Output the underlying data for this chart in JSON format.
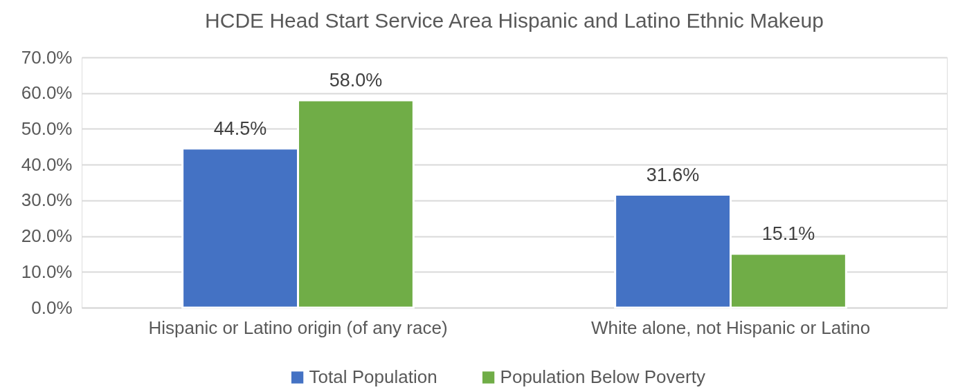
{
  "chart_data": {
    "type": "bar",
    "title": "HCDE Head Start Service Area Hispanic and Latino Ethnic Makeup",
    "categories": [
      "Hispanic or Latino origin (of any race)",
      "White alone, not Hispanic or Latino"
    ],
    "series": [
      {
        "name": "Total Population",
        "color": "#4472c4",
        "values": [
          44.5,
          31.6
        ],
        "value_labels": [
          "44.5%",
          "31.6%"
        ]
      },
      {
        "name": "Population Below Poverty",
        "color": "#70ad47",
        "values": [
          58.0,
          15.1
        ],
        "value_labels": [
          "58.0%",
          "15.1%"
        ]
      }
    ],
    "ylim": [
      0,
      70
    ],
    "yticks": [
      {
        "value": 0,
        "label": "0.0%"
      },
      {
        "value": 10,
        "label": "10.0%"
      },
      {
        "value": 20,
        "label": "20.0%"
      },
      {
        "value": 30,
        "label": "30.0%"
      },
      {
        "value": 40,
        "label": "40.0%"
      },
      {
        "value": 50,
        "label": "50.0%"
      },
      {
        "value": 60,
        "label": "60.0%"
      },
      {
        "value": 70,
        "label": "70.0%"
      }
    ],
    "grid": "y",
    "legend": "bottom"
  }
}
